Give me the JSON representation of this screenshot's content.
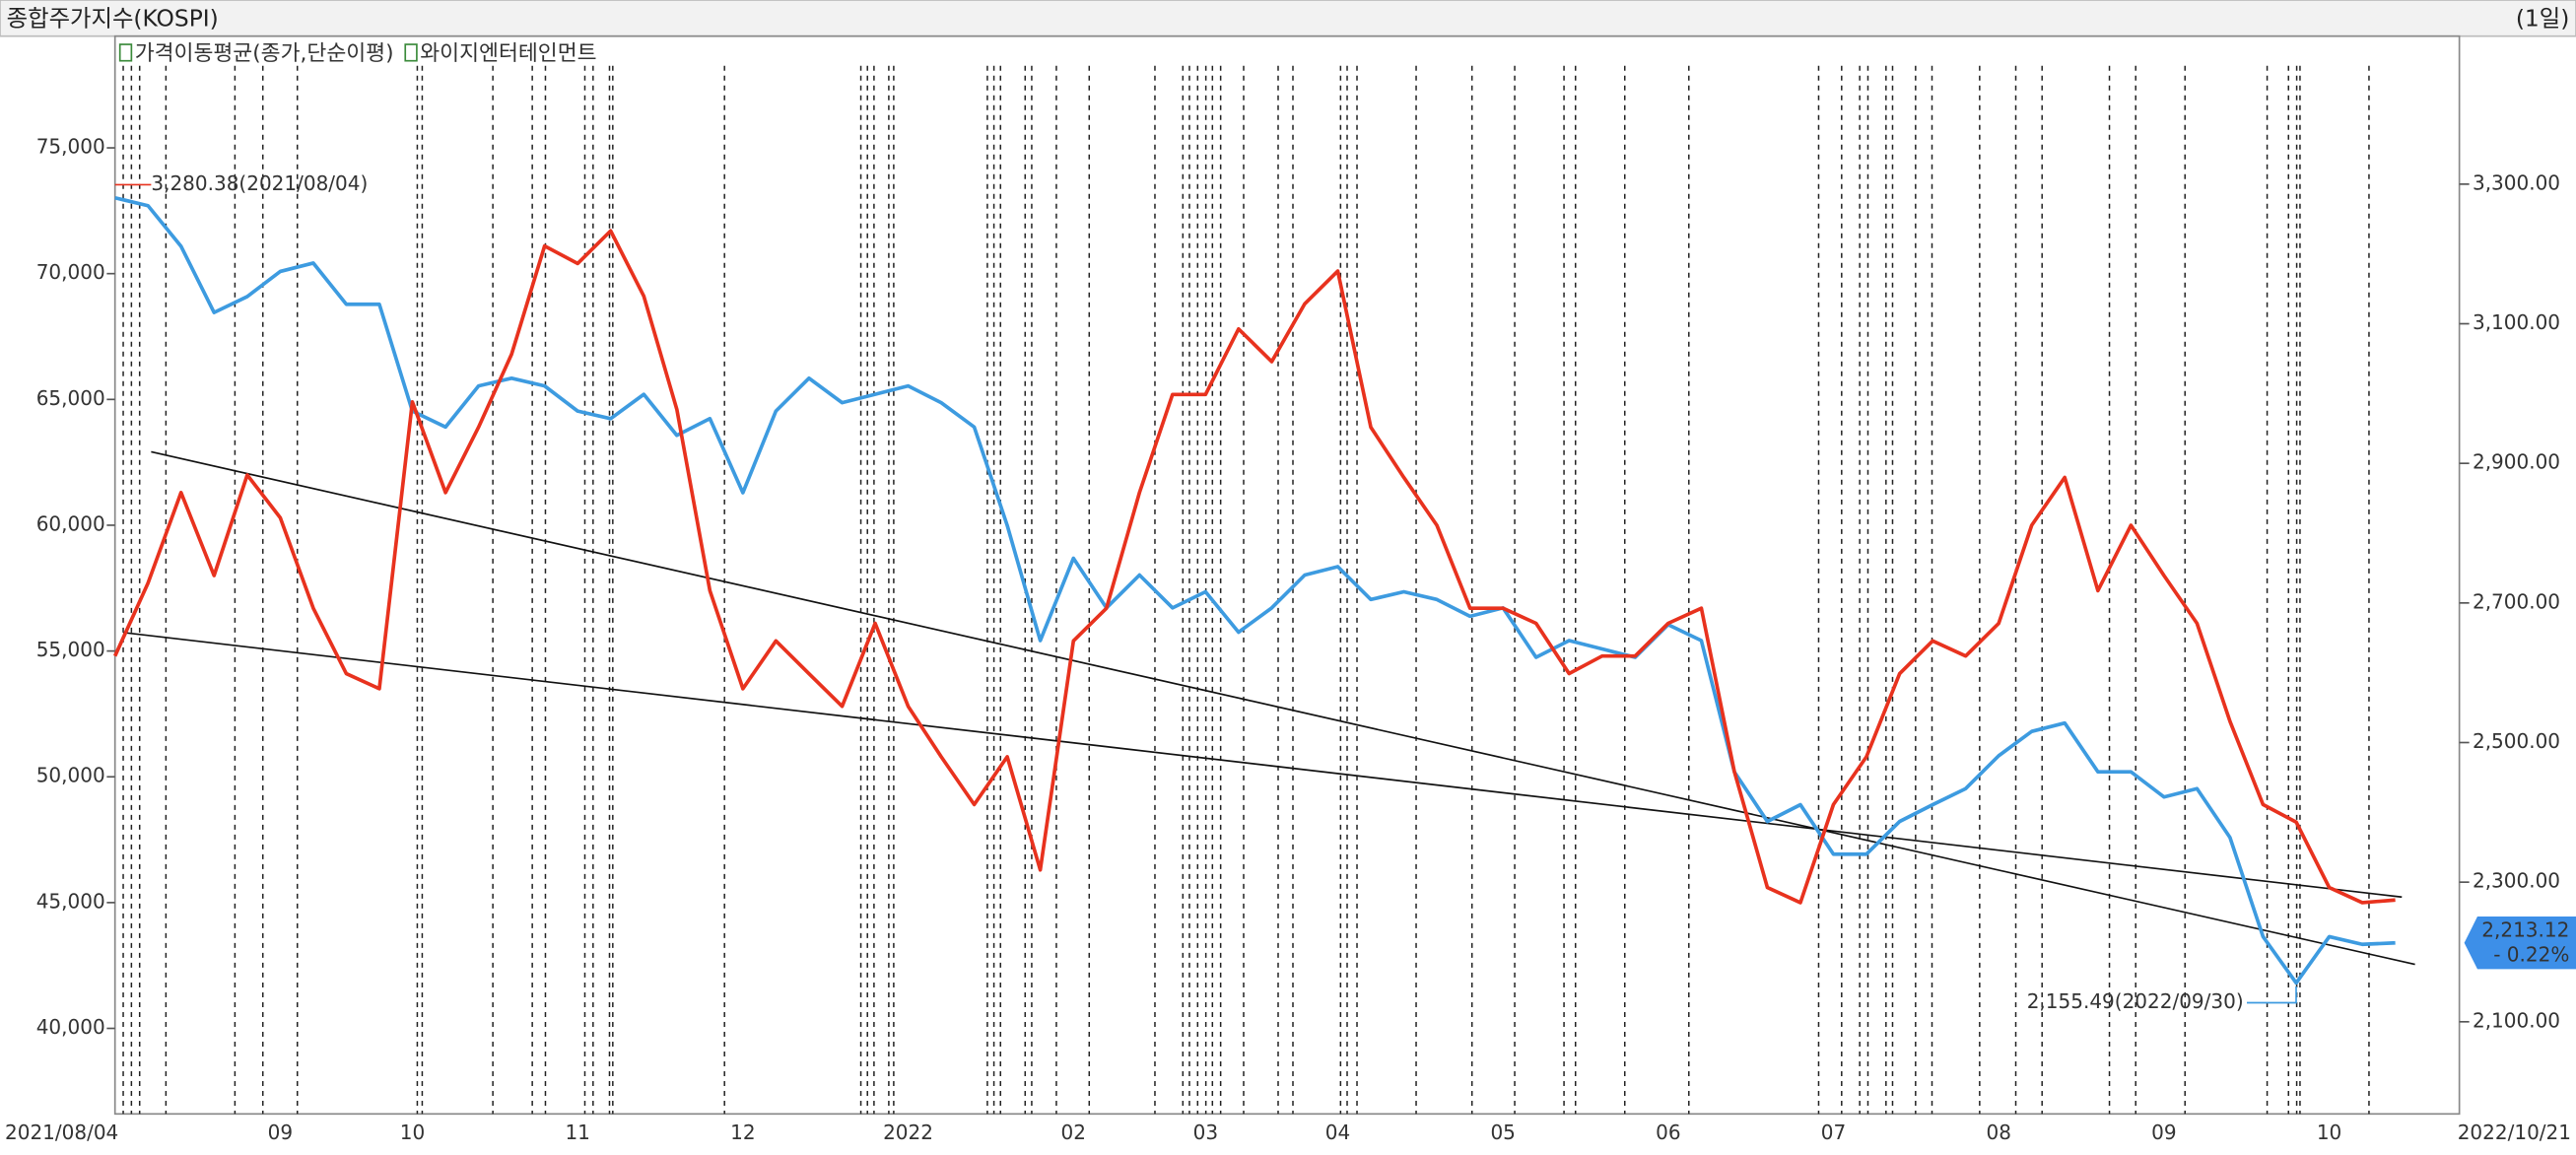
{
  "chart_data": {
    "type": "line",
    "title": "종합주가지수(KOSPI)",
    "period": "(1일)",
    "categories": [
      "2021/08/04",
      null,
      null,
      null,
      null,
      "09",
      null,
      null,
      null,
      "10",
      null,
      null,
      null,
      null,
      "11",
      null,
      null,
      null,
      null,
      "12",
      null,
      null,
      null,
      null,
      "2022",
      null,
      null,
      null,
      null,
      "02",
      null,
      null,
      null,
      "03",
      null,
      null,
      null,
      "04",
      null,
      null,
      null,
      null,
      "05",
      null,
      null,
      null,
      null,
      "06",
      null,
      null,
      null,
      null,
      "07",
      null,
      null,
      null,
      null,
      "08",
      null,
      null,
      null,
      null,
      "09",
      null,
      null,
      null,
      null,
      "10",
      null,
      "2022/10/21"
    ],
    "series": [
      {
        "name": "가격이동평균(종가,단순이평)",
        "color": "#3d9be0",
        "axis": "y2",
        "values": [
          3280.38,
          3269,
          3211,
          3116,
          3139,
          3175,
          3187,
          3128,
          3128,
          2975,
          2952,
          3011,
          3022,
          3011,
          2975,
          2964,
          2999,
          2940,
          2964,
          2858,
          2975,
          3022,
          2987,
          2999,
          3011,
          2987,
          2952,
          2811,
          2646,
          2764,
          2693,
          2740,
          2693,
          2716,
          2658,
          2693,
          2740,
          2752,
          2705,
          2716,
          2705,
          2681,
          2693,
          2622,
          2646,
          2634,
          2622,
          2669,
          2646,
          2458,
          2387,
          2411,
          2340,
          2340,
          2387,
          2411,
          2434,
          2481,
          2516,
          2528,
          2458,
          2458,
          2422,
          2434,
          2364,
          2222,
          2155.49,
          2222,
          2211,
          2213.12
        ]
      },
      {
        "name": "와이지엔터테인먼트",
        "color": "#e8321e",
        "values": [
          54800,
          57700,
          61300,
          58000,
          62000,
          60300,
          56700,
          54100,
          53500,
          64900,
          61300,
          63900,
          66800,
          71100,
          70400,
          71700,
          69100,
          64600,
          57400,
          53500,
          55400,
          54100,
          52800,
          56100,
          52800,
          50800,
          48900,
          50800,
          46300,
          55400,
          56700,
          61300,
          65200,
          65200,
          67800,
          66500,
          68800,
          70100,
          63900,
          61900,
          60000,
          56700,
          56700,
          56100,
          54100,
          54800,
          54800,
          56100,
          56700,
          50200,
          45600,
          45000,
          48900,
          50800,
          54100,
          55400,
          54800,
          56100,
          60000,
          61900,
          57400,
          60000,
          58000,
          56100,
          52200,
          48900,
          48200,
          45600,
          45000,
          45100
        ]
      }
    ],
    "ylim": [
      36600,
      79440
    ],
    "yticks": [
      {
        "value": 40000,
        "label": "40,000"
      },
      {
        "value": 45000,
        "label": "45,000"
      },
      {
        "value": 50000,
        "label": "50,000"
      },
      {
        "value": 55000,
        "label": "55,000"
      },
      {
        "value": 60000,
        "label": "60,000"
      },
      {
        "value": 65000,
        "label": "65,000"
      },
      {
        "value": 70000,
        "label": "70,000"
      },
      {
        "value": 75000,
        "label": "75,000"
      }
    ],
    "y2lim": [
      1968,
      3512
    ],
    "y2ticks": [
      {
        "value": 2100,
        "label": "2,100.00"
      },
      {
        "value": 2300,
        "label": "2,300.00"
      },
      {
        "value": 2500,
        "label": "2,500.00"
      },
      {
        "value": 2700,
        "label": "2,700.00"
      },
      {
        "value": 2900,
        "label": "2,900.00"
      },
      {
        "value": 3100,
        "label": "3,100.00"
      },
      {
        "value": 3300,
        "label": "3,300.00"
      }
    ],
    "annotations": {
      "max_label": "3,280.38(2021/08/04)",
      "min_label": "2,155.49(2022/09/30)",
      "current_label": "2,213.12",
      "change_label": "- 0.22%"
    }
  }
}
